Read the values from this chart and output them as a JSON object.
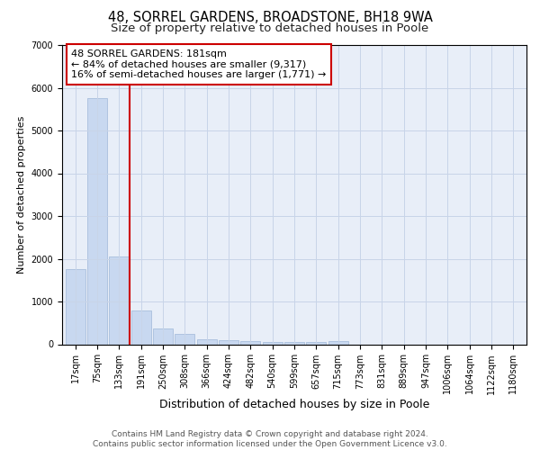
{
  "title": "48, SORREL GARDENS, BROADSTONE, BH18 9WA",
  "subtitle": "Size of property relative to detached houses in Poole",
  "xlabel": "Distribution of detached houses by size in Poole",
  "ylabel": "Number of detached properties",
  "categories": [
    "17sqm",
    "75sqm",
    "133sqm",
    "191sqm",
    "250sqm",
    "308sqm",
    "366sqm",
    "424sqm",
    "482sqm",
    "540sqm",
    "599sqm",
    "657sqm",
    "715sqm",
    "773sqm",
    "831sqm",
    "889sqm",
    "947sqm",
    "1006sqm",
    "1064sqm",
    "1122sqm",
    "1180sqm"
  ],
  "values": [
    1750,
    5750,
    2050,
    800,
    360,
    240,
    115,
    85,
    65,
    55,
    50,
    50,
    80,
    0,
    0,
    0,
    0,
    0,
    0,
    0,
    0
  ],
  "bar_color": "#c8d8f0",
  "bar_edge_color": "#a0b8d8",
  "vline_x_index": 3,
  "vline_color": "#cc0000",
  "annotation_line1": "48 SORREL GARDENS: 181sqm",
  "annotation_line2": "← 84% of detached houses are smaller (9,317)",
  "annotation_line3": "16% of semi-detached houses are larger (1,771) →",
  "annotation_box_color": "#cc0000",
  "ylim": [
    0,
    7000
  ],
  "yticks": [
    0,
    1000,
    2000,
    3000,
    4000,
    5000,
    6000,
    7000
  ],
  "grid_color": "#c8d4e8",
  "bg_color": "#e8eef8",
  "footer_line1": "Contains HM Land Registry data © Crown copyright and database right 2024.",
  "footer_line2": "Contains public sector information licensed under the Open Government Licence v3.0.",
  "title_fontsize": 10.5,
  "subtitle_fontsize": 9.5,
  "xlabel_fontsize": 9,
  "ylabel_fontsize": 8,
  "tick_fontsize": 7,
  "annotation_fontsize": 8,
  "footer_fontsize": 6.5
}
